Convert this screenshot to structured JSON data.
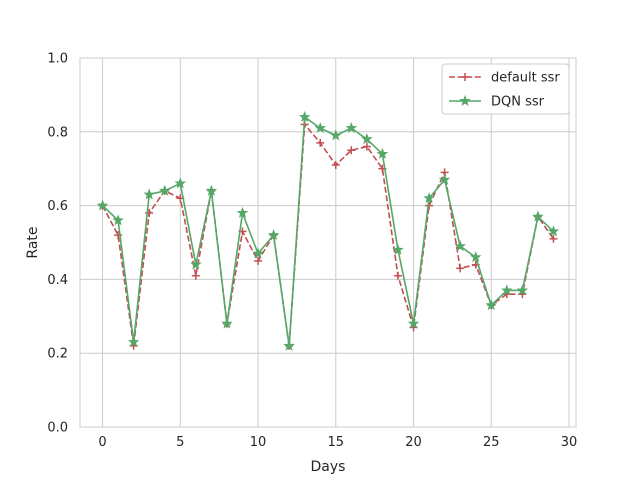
{
  "chart_data": {
    "type": "line",
    "title": "",
    "xlabel": "Days",
    "ylabel": "Rate",
    "xlim": [
      -1.45,
      30.45
    ],
    "ylim": [
      0.0,
      1.0
    ],
    "xticks": [
      0,
      5,
      10,
      15,
      20,
      25,
      30
    ],
    "yticks": [
      0.0,
      0.2,
      0.4,
      0.6,
      0.8,
      1.0
    ],
    "xtick_labels": [
      "0",
      "5",
      "10",
      "15",
      "20",
      "25",
      "30"
    ],
    "ytick_labels": [
      "0.0",
      "0.2",
      "0.4",
      "0.6",
      "0.8",
      "1.0"
    ],
    "grid": true,
    "legend_position": "top-right",
    "x": [
      0,
      1,
      2,
      3,
      4,
      5,
      6,
      7,
      8,
      9,
      10,
      11,
      12,
      13,
      14,
      15,
      16,
      17,
      18,
      19,
      20,
      21,
      22,
      23,
      24,
      25,
      26,
      27,
      28,
      29
    ],
    "series": [
      {
        "name": "default ssr",
        "color": "#c44e52",
        "line_style": "dashed",
        "marker": "plus",
        "values": [
          0.6,
          0.52,
          0.22,
          0.58,
          0.64,
          0.62,
          0.41,
          0.64,
          0.28,
          0.53,
          0.45,
          0.52,
          0.22,
          0.82,
          0.77,
          0.71,
          0.75,
          0.76,
          0.7,
          0.41,
          0.27,
          0.6,
          0.69,
          0.43,
          0.44,
          0.33,
          0.36,
          0.36,
          0.57,
          0.51
        ]
      },
      {
        "name": "DQN ssr",
        "color": "#55a868",
        "line_style": "solid",
        "marker": "star",
        "values": [
          0.6,
          0.56,
          0.23,
          0.63,
          0.64,
          0.66,
          0.44,
          0.64,
          0.28,
          0.58,
          0.47,
          0.52,
          0.22,
          0.84,
          0.81,
          0.79,
          0.81,
          0.78,
          0.74,
          0.48,
          0.28,
          0.62,
          0.67,
          0.49,
          0.46,
          0.33,
          0.37,
          0.37,
          0.57,
          0.53
        ]
      }
    ]
  }
}
